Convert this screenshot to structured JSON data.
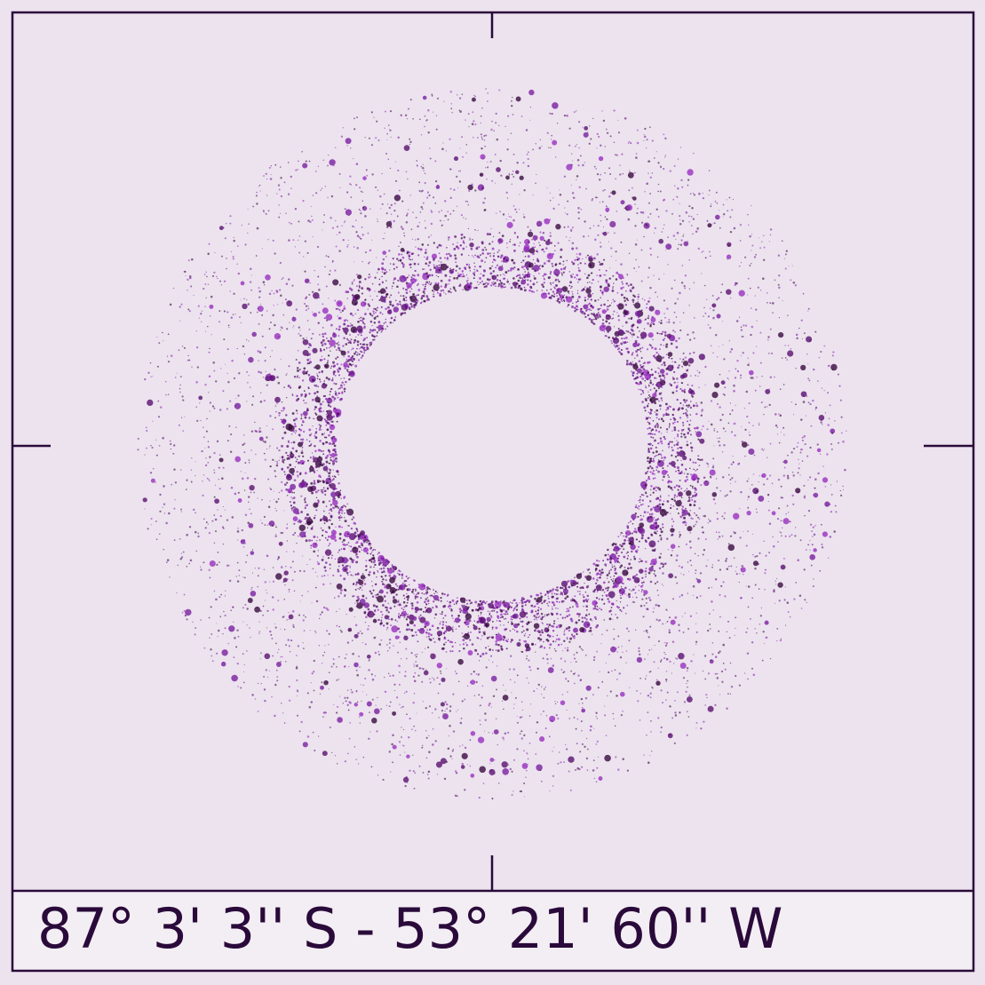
{
  "caption": "87° 3' 3'' S - 53° 21' 60'' W"
}
